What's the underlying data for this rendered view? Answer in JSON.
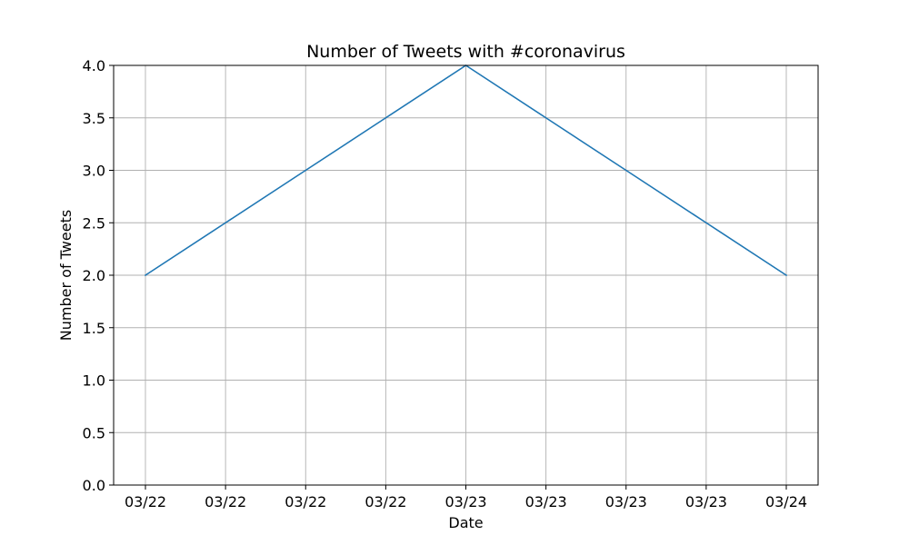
{
  "chart_data": {
    "type": "line",
    "title": "Number of Tweets with #coronavirus",
    "xlabel": "Date",
    "ylabel": "Number of Tweets",
    "x_tick_labels": [
      "03/22",
      "03/22",
      "03/22",
      "03/22",
      "03/23",
      "03/23",
      "03/23",
      "03/23",
      "03/24"
    ],
    "x": [
      "03/22 00:00",
      "03/22 06:00",
      "03/22 12:00",
      "03/22 18:00",
      "03/23 00:00",
      "03/23 06:00",
      "03/23 12:00",
      "03/23 18:00",
      "03/24 00:00"
    ],
    "series": [
      {
        "values": [
          2.0,
          2.5,
          3.0,
          3.5,
          4.0,
          3.5,
          3.0,
          2.5,
          2.0
        ]
      }
    ],
    "ylim": [
      0.0,
      4.0
    ],
    "y_ticks": [
      0.0,
      0.5,
      1.0,
      1.5,
      2.0,
      2.5,
      3.0,
      3.5,
      4.0
    ],
    "y_tick_labels": [
      "0.0",
      "0.5",
      "1.0",
      "1.5",
      "2.0",
      "2.5",
      "3.0",
      "3.5",
      "4.0"
    ],
    "grid": true,
    "line_color": "#1f77b4"
  }
}
